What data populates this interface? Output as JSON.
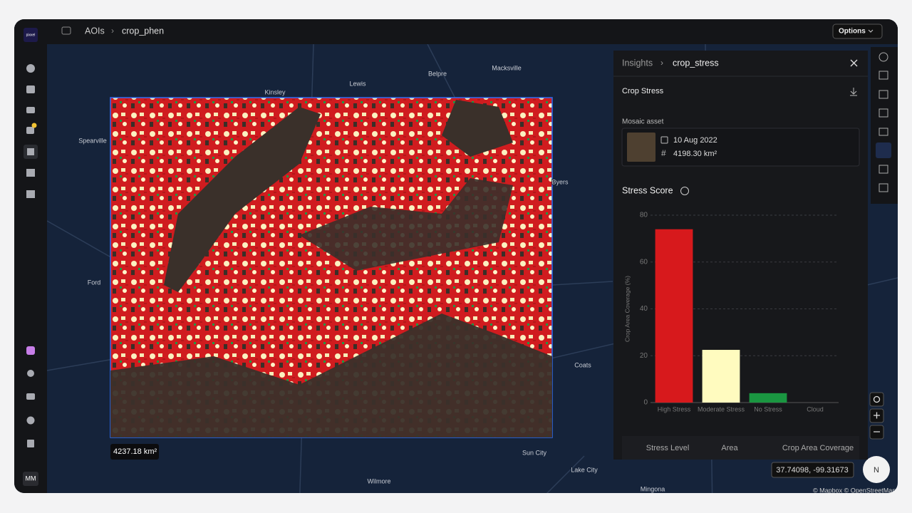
{
  "app": {
    "logo": "pixxel",
    "avatar": "MM"
  },
  "breadcrumb": [
    "AOIs",
    "crop_phen"
  ],
  "options": "Options",
  "map": {
    "labels": [
      "Kinsley",
      "Lewis",
      "Belpre",
      "Macksville",
      "Spearville",
      "Byers",
      "Ford",
      "Coats",
      "Sun City",
      "Lake City",
      "Wilmore",
      "Mingona"
    ],
    "area_label": "4237.18 km²",
    "coordinates": "37.74098, -99.31673",
    "attribution": "© Mapbox © OpenStreetMap",
    "compass": "N"
  },
  "panel": {
    "breadcrumb": [
      "Insights",
      "crop_stress"
    ],
    "section": "Crop Stress",
    "asset_heading": "Mosaic asset",
    "asset_date": "10 Aug 2022",
    "asset_area": "4198.30 km²",
    "score_title": "Stress Score",
    "table_headers": [
      "Stress Level",
      "Area",
      "Crop Area Coverage"
    ]
  },
  "chart_data": {
    "type": "bar",
    "categories": [
      "High Stress",
      "Moderate Stress",
      "No Stress",
      "Cloud"
    ],
    "values": [
      74,
      22.5,
      4,
      0
    ],
    "colors": [
      "#d7191c",
      "#fffbbf",
      "#1a9641",
      "#9e9e9e"
    ],
    "ylabel": "Crop Area Coverage (%)",
    "ylim": [
      0,
      80
    ],
    "yticks": [
      0,
      20,
      40,
      60,
      80
    ],
    "grid": true
  }
}
